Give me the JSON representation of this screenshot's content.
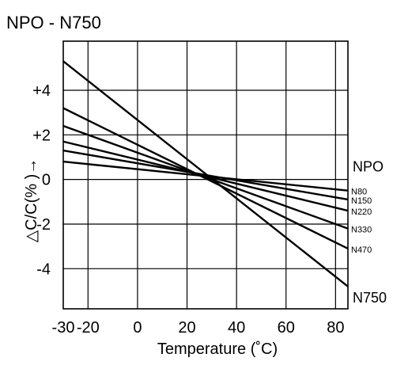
{
  "chart_data": {
    "type": "line",
    "title": "NPO - N750",
    "xlabel": "Temperature (˚C)",
    "ylabel": "△C/C(% )→",
    "xlim": [
      -30,
      85
    ],
    "ylim": [
      -5.8,
      6.2
    ],
    "x_ticks": [
      -30,
      -20,
      0,
      20,
      40,
      60,
      80
    ],
    "x_tick_labels": [
      "-30",
      "-20",
      "0",
      "20",
      "40",
      "60",
      "80"
    ],
    "y_ticks": [
      4,
      2,
      0,
      -2,
      -4
    ],
    "y_tick_labels": [
      "+4",
      "+2",
      "0",
      "-2",
      "-4"
    ],
    "grid": true,
    "series": [
      {
        "name": "NPO",
        "x": [
          -30,
          85
        ],
        "y": [
          0,
          0
        ]
      },
      {
        "name": "N80",
        "x": [
          -30,
          85
        ],
        "y": [
          0.8,
          -0.5
        ]
      },
      {
        "name": "N150",
        "x": [
          -30,
          85
        ],
        "y": [
          1.3,
          -0.9
        ]
      },
      {
        "name": "N220",
        "x": [
          -30,
          85
        ],
        "y": [
          1.7,
          -1.4
        ]
      },
      {
        "name": "N330",
        "x": [
          -30,
          85
        ],
        "y": [
          2.4,
          -2.2
        ]
      },
      {
        "name": "N470",
        "x": [
          -30,
          85
        ],
        "y": [
          3.2,
          -3.1
        ]
      },
      {
        "name": "N750",
        "x": [
          -30,
          85
        ],
        "y": [
          5.3,
          -4.8
        ]
      }
    ],
    "line_color": "#000000",
    "grid_color": "#000000"
  }
}
